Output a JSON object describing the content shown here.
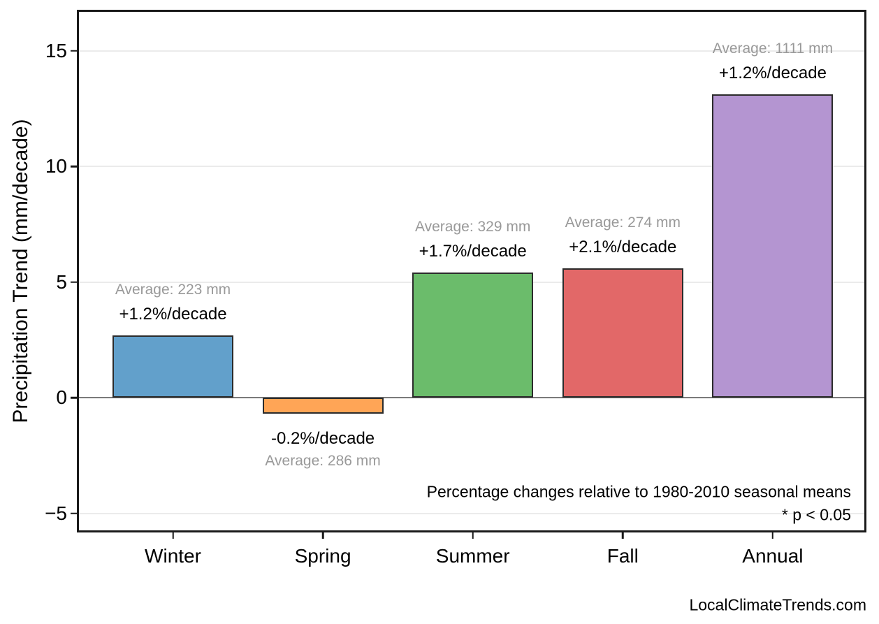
{
  "watermark": "LocalClimateTrends.com",
  "chart_data": {
    "type": "bar",
    "title": "",
    "xlabel": "",
    "ylabel": "Precipitation Trend (mm/decade)",
    "categories": [
      "Winter",
      "Spring",
      "Summer",
      "Fall",
      "Annual"
    ],
    "values": [
      2.7,
      -0.7,
      5.4,
      5.6,
      13.1
    ],
    "bar_labels": [
      {
        "average": "Average: 223 mm",
        "trend": "+1.2%/decade"
      },
      {
        "average": "Average: 286 mm",
        "trend": "-0.2%/decade"
      },
      {
        "average": "Average: 329 mm",
        "trend": "+1.7%/decade"
      },
      {
        "average": "Average: 274 mm",
        "trend": "+2.1%/decade"
      },
      {
        "average": "Average: 1111 mm",
        "trend": "+1.2%/decade"
      }
    ],
    "bar_colors": [
      "#62A0CB",
      "#FFA556",
      "#6BBC6B",
      "#E26868",
      "#B495D1"
    ],
    "bar_edge_color": "#2b2b2b",
    "yticks": [
      -5,
      0,
      5,
      10,
      15
    ],
    "ytick_labels": [
      "−5",
      "0",
      "5",
      "10",
      "15"
    ],
    "ylim": [
      -6.3,
      16.8
    ],
    "grid": "horizontal",
    "gridline_color": "#ebebeb",
    "zero_line_color": "#7a7a7a",
    "legend": "none",
    "annotations": {
      "note": "Percentage changes relative to 1980-2010 seasonal means",
      "significance": "* p < 0.05"
    },
    "label_colors": {
      "average": "#999999",
      "trend": "#000000"
    }
  }
}
